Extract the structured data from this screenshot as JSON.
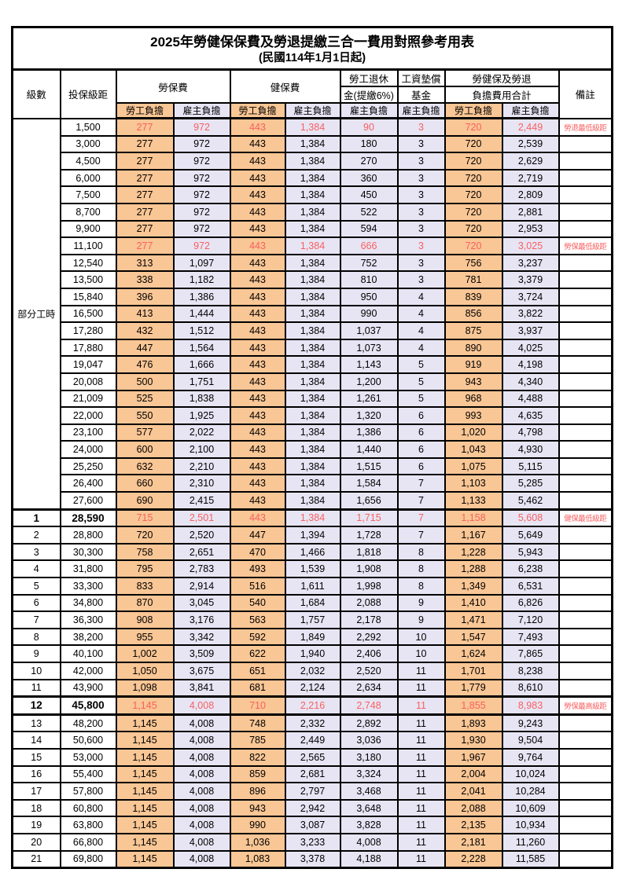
{
  "title": "2025年勞健保保費及勞退提繳三合一費用對照參考用表",
  "subtitle": "(民國114年1月1日起)",
  "colors": {
    "employee_bg": "#F9C695",
    "employer_bg": "#E7E5F4",
    "highlight_text": "#F96060",
    "border": "#000000"
  },
  "header": {
    "level": "級數",
    "bracket": "投保級距",
    "labor": "勞保費",
    "health": "健保費",
    "pension_line1": "勞工退休",
    "pension_line2": "金(提繳6%)",
    "wage_fund_line1": "工資墊償",
    "wage_fund_line2": "基金",
    "total_line1": "勞健保及勞退",
    "total_line2": "負擔費用合計",
    "remark": "備註",
    "employee": "勞工負擔",
    "employer": "雇主負擔"
  },
  "part_time_label": "部分工時",
  "rows": [
    {
      "level": "",
      "bracket": "1,500",
      "values": [
        "277",
        "972",
        "443",
        "1,384",
        "90",
        "3",
        "720",
        "2,449"
      ],
      "remark": "勞退最低級距",
      "red": true
    },
    {
      "level": "",
      "bracket": "3,000",
      "values": [
        "277",
        "972",
        "443",
        "1,384",
        "180",
        "3",
        "720",
        "2,539"
      ],
      "remark": ""
    },
    {
      "level": "",
      "bracket": "4,500",
      "values": [
        "277",
        "972",
        "443",
        "1,384",
        "270",
        "3",
        "720",
        "2,629"
      ],
      "remark": ""
    },
    {
      "level": "",
      "bracket": "6,000",
      "values": [
        "277",
        "972",
        "443",
        "1,384",
        "360",
        "3",
        "720",
        "2,719"
      ],
      "remark": ""
    },
    {
      "level": "",
      "bracket": "7,500",
      "values": [
        "277",
        "972",
        "443",
        "1,384",
        "450",
        "3",
        "720",
        "2,809"
      ],
      "remark": ""
    },
    {
      "level": "",
      "bracket": "8,700",
      "values": [
        "277",
        "972",
        "443",
        "1,384",
        "522",
        "3",
        "720",
        "2,881"
      ],
      "remark": ""
    },
    {
      "level": "",
      "bracket": "9,900",
      "values": [
        "277",
        "972",
        "443",
        "1,384",
        "594",
        "3",
        "720",
        "2,953"
      ],
      "remark": ""
    },
    {
      "level": "",
      "bracket": "11,100",
      "values": [
        "277",
        "972",
        "443",
        "1,384",
        "666",
        "3",
        "720",
        "3,025"
      ],
      "remark": "勞保最低級距",
      "red": true
    },
    {
      "level": "",
      "bracket": "12,540",
      "values": [
        "313",
        "1,097",
        "443",
        "1,384",
        "752",
        "3",
        "756",
        "3,237"
      ],
      "remark": ""
    },
    {
      "level": "",
      "bracket": "13,500",
      "values": [
        "338",
        "1,182",
        "443",
        "1,384",
        "810",
        "3",
        "781",
        "3,379"
      ],
      "remark": ""
    },
    {
      "level": "",
      "bracket": "15,840",
      "values": [
        "396",
        "1,386",
        "443",
        "1,384",
        "950",
        "4",
        "839",
        "3,724"
      ],
      "remark": ""
    },
    {
      "level": "",
      "bracket": "16,500",
      "values": [
        "413",
        "1,444",
        "443",
        "1,384",
        "990",
        "4",
        "856",
        "3,822"
      ],
      "remark": ""
    },
    {
      "level": "",
      "bracket": "17,280",
      "values": [
        "432",
        "1,512",
        "443",
        "1,384",
        "1,037",
        "4",
        "875",
        "3,937"
      ],
      "remark": ""
    },
    {
      "level": "",
      "bracket": "17,880",
      "values": [
        "447",
        "1,564",
        "443",
        "1,384",
        "1,073",
        "4",
        "890",
        "4,025"
      ],
      "remark": ""
    },
    {
      "level": "",
      "bracket": "19,047",
      "values": [
        "476",
        "1,666",
        "443",
        "1,384",
        "1,143",
        "5",
        "919",
        "4,198"
      ],
      "remark": ""
    },
    {
      "level": "",
      "bracket": "20,008",
      "values": [
        "500",
        "1,751",
        "443",
        "1,384",
        "1,200",
        "5",
        "943",
        "4,340"
      ],
      "remark": ""
    },
    {
      "level": "",
      "bracket": "21,009",
      "values": [
        "525",
        "1,838",
        "443",
        "1,384",
        "1,261",
        "5",
        "968",
        "4,488"
      ],
      "remark": ""
    },
    {
      "level": "",
      "bracket": "22,000",
      "values": [
        "550",
        "1,925",
        "443",
        "1,384",
        "1,320",
        "6",
        "993",
        "4,635"
      ],
      "remark": ""
    },
    {
      "level": "",
      "bracket": "23,100",
      "values": [
        "577",
        "2,022",
        "443",
        "1,384",
        "1,386",
        "6",
        "1,020",
        "4,798"
      ],
      "remark": ""
    },
    {
      "level": "",
      "bracket": "24,000",
      "values": [
        "600",
        "2,100",
        "443",
        "1,384",
        "1,440",
        "6",
        "1,043",
        "4,930"
      ],
      "remark": ""
    },
    {
      "level": "",
      "bracket": "25,250",
      "values": [
        "632",
        "2,210",
        "443",
        "1,384",
        "1,515",
        "6",
        "1,075",
        "5,115"
      ],
      "remark": ""
    },
    {
      "level": "",
      "bracket": "26,400",
      "values": [
        "660",
        "2,310",
        "443",
        "1,384",
        "1,584",
        "7",
        "1,103",
        "5,285"
      ],
      "remark": ""
    },
    {
      "level": "",
      "bracket": "27,600",
      "values": [
        "690",
        "2,415",
        "443",
        "1,384",
        "1,656",
        "7",
        "1,133",
        "5,462"
      ],
      "remark": ""
    },
    {
      "level": "1",
      "bracket": "28,590",
      "values": [
        "715",
        "2,501",
        "443",
        "1,384",
        "1,715",
        "7",
        "1,158",
        "5,608"
      ],
      "remark": "健保最低級距",
      "red": true,
      "bold": true,
      "sep_top": true
    },
    {
      "level": "2",
      "bracket": "28,800",
      "values": [
        "720",
        "2,520",
        "447",
        "1,394",
        "1,728",
        "7",
        "1,167",
        "5,649"
      ],
      "remark": ""
    },
    {
      "level": "3",
      "bracket": "30,300",
      "values": [
        "758",
        "2,651",
        "470",
        "1,466",
        "1,818",
        "8",
        "1,228",
        "5,943"
      ],
      "remark": ""
    },
    {
      "level": "4",
      "bracket": "31,800",
      "values": [
        "795",
        "2,783",
        "493",
        "1,539",
        "1,908",
        "8",
        "1,288",
        "6,238"
      ],
      "remark": ""
    },
    {
      "level": "5",
      "bracket": "33,300",
      "values": [
        "833",
        "2,914",
        "516",
        "1,611",
        "1,998",
        "8",
        "1,349",
        "6,531"
      ],
      "remark": ""
    },
    {
      "level": "6",
      "bracket": "34,800",
      "values": [
        "870",
        "3,045",
        "540",
        "1,684",
        "2,088",
        "9",
        "1,410",
        "6,826"
      ],
      "remark": ""
    },
    {
      "level": "7",
      "bracket": "36,300",
      "values": [
        "908",
        "3,176",
        "563",
        "1,757",
        "2,178",
        "9",
        "1,471",
        "7,120"
      ],
      "remark": ""
    },
    {
      "level": "8",
      "bracket": "38,200",
      "values": [
        "955",
        "3,342",
        "592",
        "1,849",
        "2,292",
        "10",
        "1,547",
        "7,493"
      ],
      "remark": ""
    },
    {
      "level": "9",
      "bracket": "40,100",
      "values": [
        "1,002",
        "3,509",
        "622",
        "1,940",
        "2,406",
        "10",
        "1,624",
        "7,865"
      ],
      "remark": ""
    },
    {
      "level": "10",
      "bracket": "42,000",
      "values": [
        "1,050",
        "3,675",
        "651",
        "2,032",
        "2,520",
        "11",
        "1,701",
        "8,238"
      ],
      "remark": ""
    },
    {
      "level": "11",
      "bracket": "43,900",
      "values": [
        "1,098",
        "3,841",
        "681",
        "2,124",
        "2,634",
        "11",
        "1,779",
        "8,610"
      ],
      "remark": ""
    },
    {
      "level": "12",
      "bracket": "45,800",
      "values": [
        "1,145",
        "4,008",
        "710",
        "2,216",
        "2,748",
        "11",
        "1,855",
        "8,983"
      ],
      "remark": "勞保最高級距",
      "red": true,
      "bold": true,
      "sep_top": true,
      "sep_bottom": true
    },
    {
      "level": "13",
      "bracket": "48,200",
      "values": [
        "1,145",
        "4,008",
        "748",
        "2,332",
        "2,892",
        "11",
        "1,893",
        "9,243"
      ],
      "remark": ""
    },
    {
      "level": "14",
      "bracket": "50,600",
      "values": [
        "1,145",
        "4,008",
        "785",
        "2,449",
        "3,036",
        "11",
        "1,930",
        "9,504"
      ],
      "remark": ""
    },
    {
      "level": "15",
      "bracket": "53,000",
      "values": [
        "1,145",
        "4,008",
        "822",
        "2,565",
        "3,180",
        "11",
        "1,967",
        "9,764"
      ],
      "remark": ""
    },
    {
      "level": "16",
      "bracket": "55,400",
      "values": [
        "1,145",
        "4,008",
        "859",
        "2,681",
        "3,324",
        "11",
        "2,004",
        "10,024"
      ],
      "remark": ""
    },
    {
      "level": "17",
      "bracket": "57,800",
      "values": [
        "1,145",
        "4,008",
        "896",
        "2,797",
        "3,468",
        "11",
        "2,041",
        "10,284"
      ],
      "remark": ""
    },
    {
      "level": "18",
      "bracket": "60,800",
      "values": [
        "1,145",
        "4,008",
        "943",
        "2,942",
        "3,648",
        "11",
        "2,088",
        "10,609"
      ],
      "remark": ""
    },
    {
      "level": "19",
      "bracket": "63,800",
      "values": [
        "1,145",
        "4,008",
        "990",
        "3,087",
        "3,828",
        "11",
        "2,135",
        "10,934"
      ],
      "remark": ""
    },
    {
      "level": "20",
      "bracket": "66,800",
      "values": [
        "1,145",
        "4,008",
        "1,036",
        "3,233",
        "4,008",
        "11",
        "2,181",
        "11,260"
      ],
      "remark": ""
    },
    {
      "level": "21",
      "bracket": "69,800",
      "values": [
        "1,145",
        "4,008",
        "1,083",
        "3,378",
        "4,188",
        "11",
        "2,228",
        "11,585"
      ],
      "remark": ""
    }
  ],
  "value_columns": [
    {
      "key": "labor-employee-fee",
      "tint": "emp"
    },
    {
      "key": "labor-employer-fee",
      "tint": "er"
    },
    {
      "key": "health-employee-fee",
      "tint": "emp"
    },
    {
      "key": "health-employer-fee",
      "tint": "er"
    },
    {
      "key": "pension-employer-fee",
      "tint": "er"
    },
    {
      "key": "wage-fund-employer-fee",
      "tint": "er"
    },
    {
      "key": "total-employee-fee",
      "tint": "emp"
    },
    {
      "key": "total-employer-fee",
      "tint": "er"
    }
  ]
}
